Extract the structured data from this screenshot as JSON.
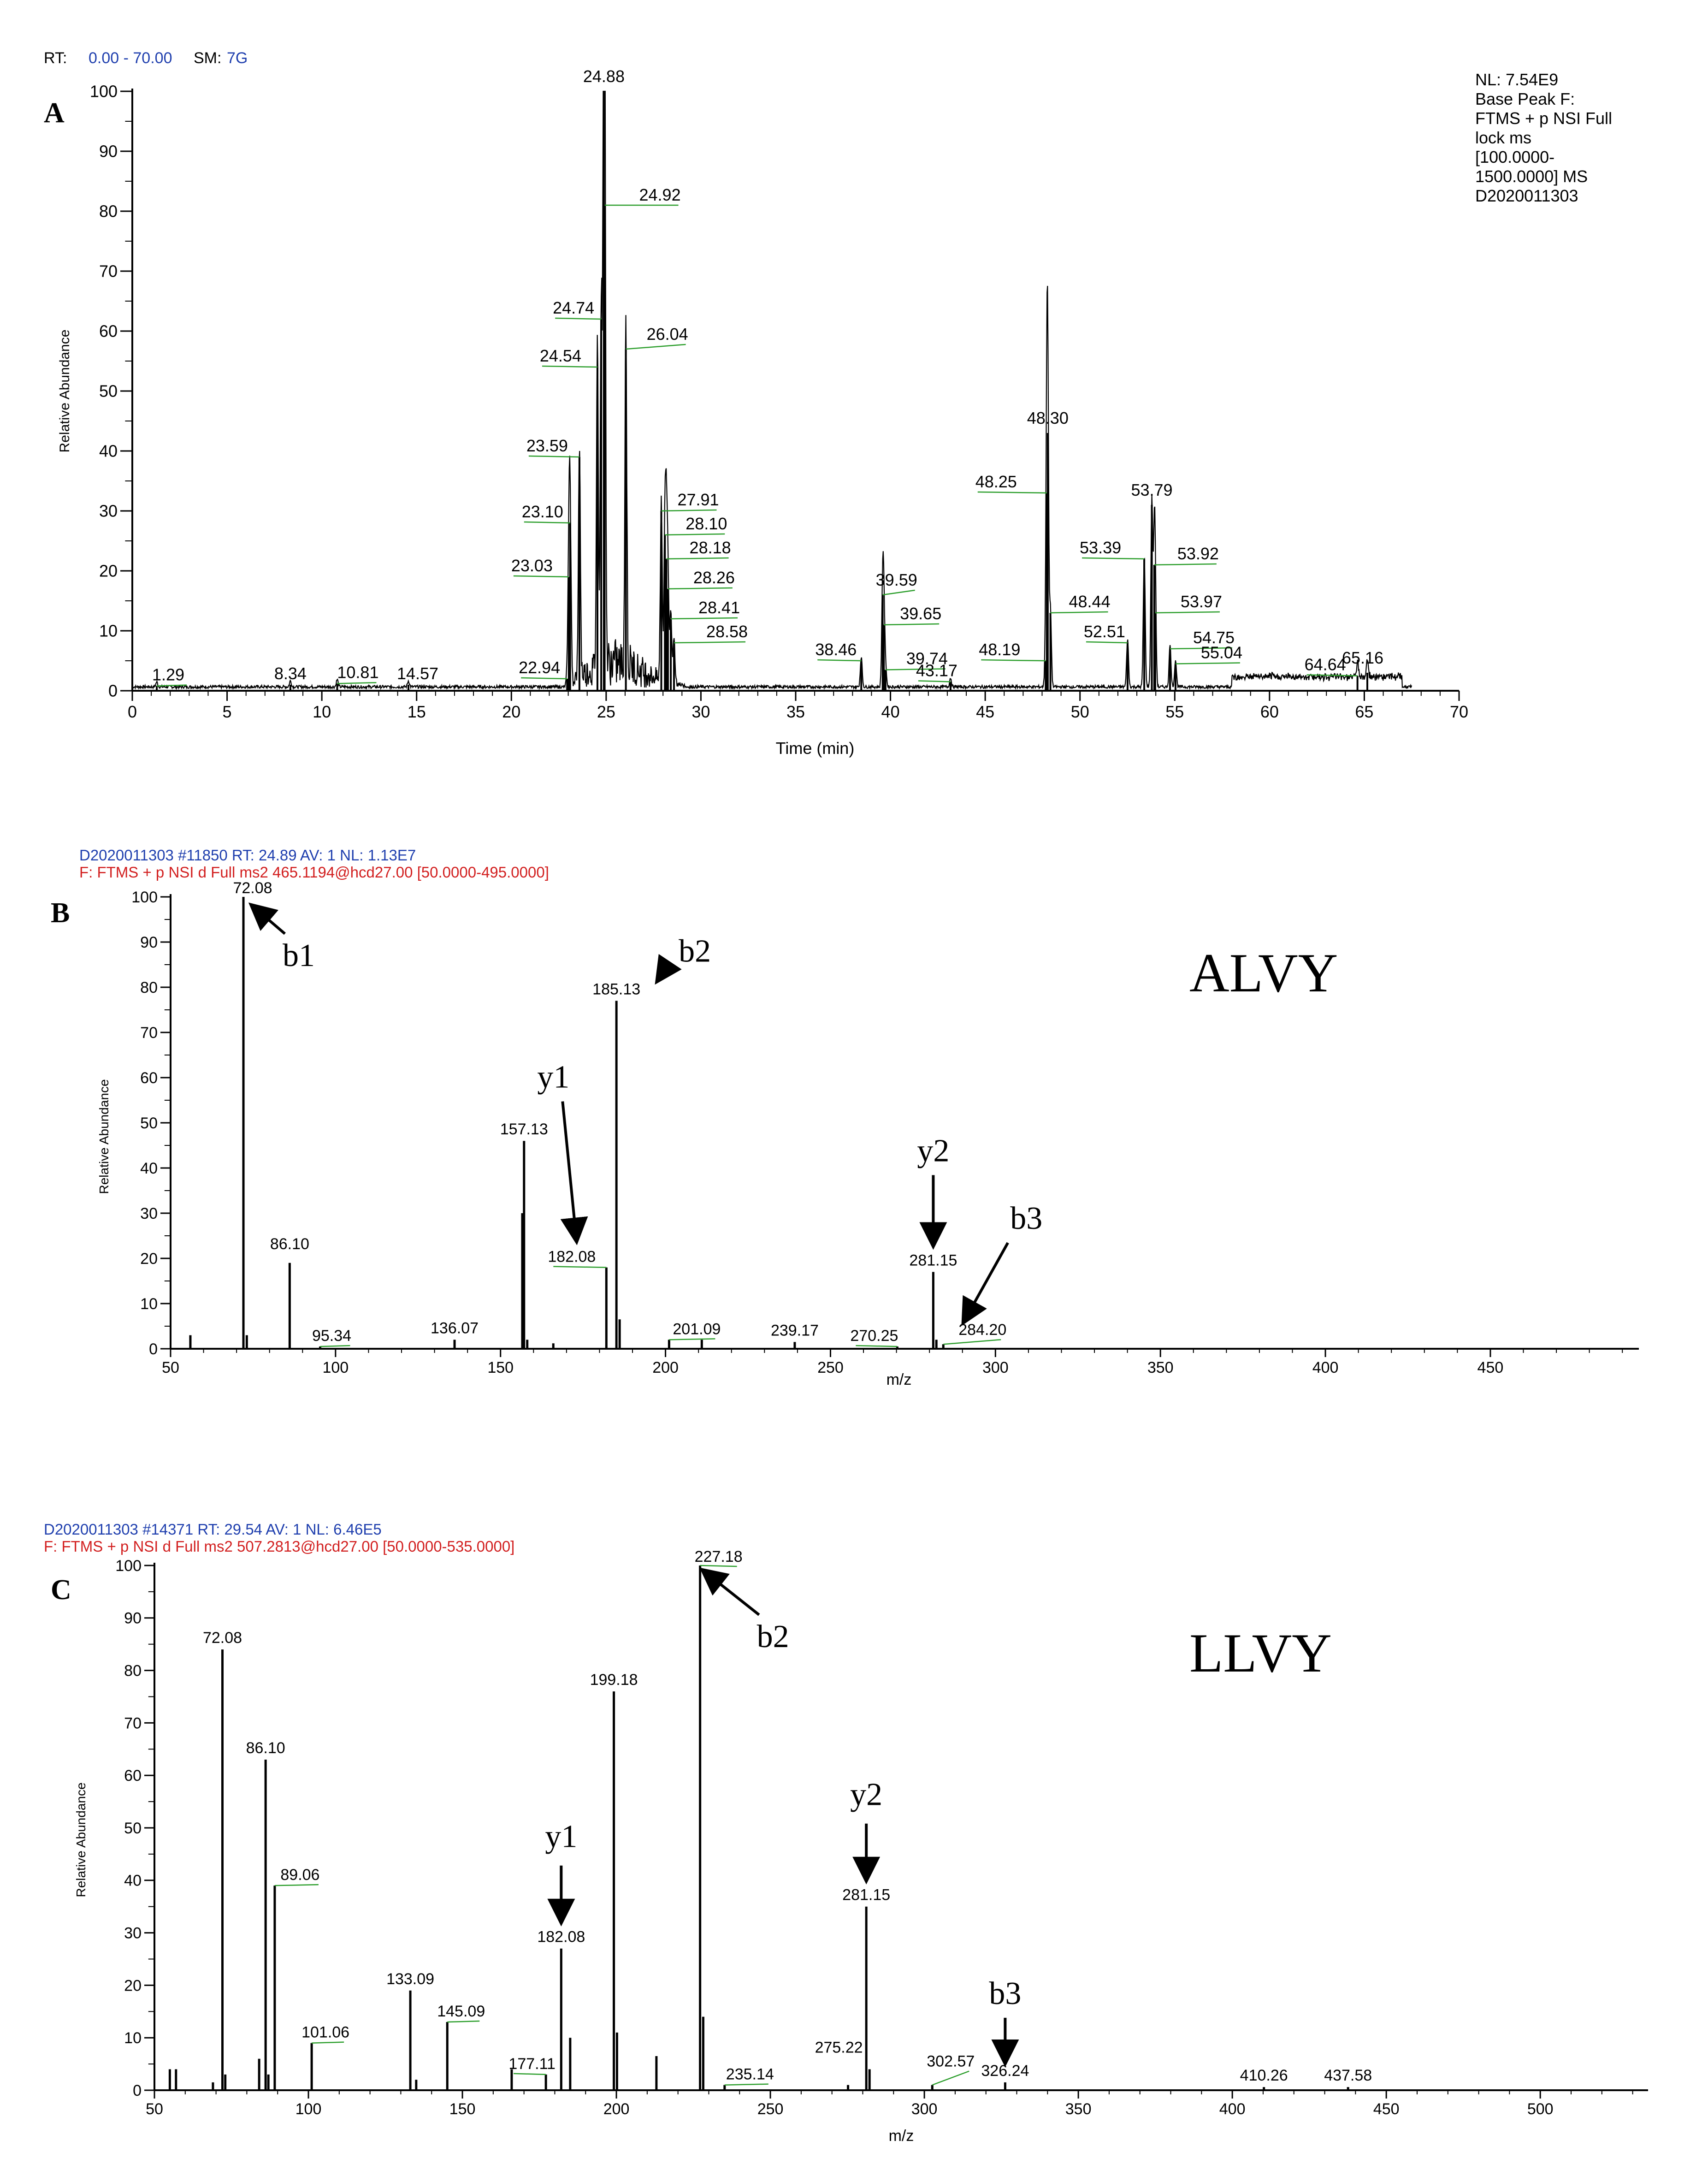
{
  "colors": {
    "axis": "#000000",
    "peak": "#000000",
    "leader": "#2a9d2a",
    "header_blue": "#1f3fae",
    "header_red": "#d21f1f",
    "arrow": "#000000"
  },
  "chart_data": [
    {
      "panel": "A",
      "type": "line",
      "header": {
        "rt_label": "RT:",
        "rt_value": "0.00 - 70.00",
        "sm_label": "SM:",
        "sm_value": "7G"
      },
      "info_box": [
        "NL: 7.54E9",
        "Base Peak F:",
        "FTMS + p NSI Full",
        "lock ms",
        "[100.0000-",
        "1500.0000] MS",
        "D2020011303"
      ],
      "xlabel": "Time (min)",
      "ylabel": "Relative Abundance",
      "xlim": [
        0,
        70
      ],
      "ylim": [
        0,
        100
      ],
      "xticks": [
        0,
        5,
        10,
        15,
        20,
        25,
        30,
        35,
        40,
        45,
        50,
        55,
        60,
        65,
        70
      ],
      "yticks": [
        0,
        10,
        20,
        30,
        40,
        50,
        60,
        70,
        80,
        90,
        100
      ],
      "peaks": [
        {
          "x": 1.29,
          "y": 0.8,
          "label": "1.29"
        },
        {
          "x": 8.34,
          "y": 1.0,
          "label": "8.34"
        },
        {
          "x": 10.81,
          "y": 1.2,
          "label": "10.81"
        },
        {
          "x": 14.57,
          "y": 1.0,
          "label": "14.57"
        },
        {
          "x": 22.94,
          "y": 2.0,
          "label": "22.94"
        },
        {
          "x": 23.03,
          "y": 19,
          "label": "23.03"
        },
        {
          "x": 23.1,
          "y": 28,
          "label": "23.10"
        },
        {
          "x": 23.59,
          "y": 39,
          "label": "23.59"
        },
        {
          "x": 24.54,
          "y": 54,
          "label": "24.54"
        },
        {
          "x": 24.74,
          "y": 62,
          "label": "24.74"
        },
        {
          "x": 24.88,
          "y": 100,
          "label": "24.88"
        },
        {
          "x": 24.92,
          "y": 81,
          "label": "24.92"
        },
        {
          "x": 26.04,
          "y": 57,
          "label": "26.04"
        },
        {
          "x": 27.91,
          "y": 30,
          "label": "27.91"
        },
        {
          "x": 28.1,
          "y": 26,
          "label": "28.10"
        },
        {
          "x": 28.18,
          "y": 22,
          "label": "28.18"
        },
        {
          "x": 28.26,
          "y": 17,
          "label": "28.26"
        },
        {
          "x": 28.41,
          "y": 12,
          "label": "28.41"
        },
        {
          "x": 28.58,
          "y": 8,
          "label": "28.58"
        },
        {
          "x": 38.46,
          "y": 5,
          "label": "38.46"
        },
        {
          "x": 39.59,
          "y": 16,
          "label": "39.59"
        },
        {
          "x": 39.65,
          "y": 11,
          "label": "39.65"
        },
        {
          "x": 39.74,
          "y": 3.5,
          "label": "39.74"
        },
        {
          "x": 43.17,
          "y": 1.5,
          "label": "43.17"
        },
        {
          "x": 48.19,
          "y": 5,
          "label": "48.19"
        },
        {
          "x": 48.25,
          "y": 33,
          "label": "48.25"
        },
        {
          "x": 48.3,
          "y": 43,
          "label": "48.30"
        },
        {
          "x": 48.44,
          "y": 13,
          "label": "48.44"
        },
        {
          "x": 52.51,
          "y": 8,
          "label": "52.51"
        },
        {
          "x": 53.39,
          "y": 22,
          "label": "53.39"
        },
        {
          "x": 53.79,
          "y": 31,
          "label": "53.79"
        },
        {
          "x": 53.92,
          "y": 21,
          "label": "53.92"
        },
        {
          "x": 53.97,
          "y": 13,
          "label": "53.97"
        },
        {
          "x": 54.75,
          "y": 7,
          "label": "54.75"
        },
        {
          "x": 55.04,
          "y": 4.5,
          "label": "55.04"
        },
        {
          "x": 64.64,
          "y": 2.5,
          "label": "64.64"
        },
        {
          "x": 65.16,
          "y": 3,
          "label": "65.16"
        }
      ]
    },
    {
      "panel": "B",
      "type": "bar",
      "header": {
        "line1": "D2020011303 #11850  RT: 24.89  AV: 1  NL: 1.13E7",
        "line2": "F: FTMS + p NSI d Full ms2 465.1194@hcd27.00 [50.0000-495.0000]"
      },
      "peptide": "ALVY",
      "xlabel": "m/z",
      "ylabel": "Relative Abundance",
      "xlim": [
        50,
        495
      ],
      "ylim": [
        0,
        100
      ],
      "xticks": [
        50,
        100,
        150,
        200,
        250,
        300,
        350,
        400,
        450
      ],
      "yticks": [
        0,
        10,
        20,
        30,
        40,
        50,
        60,
        70,
        80,
        90,
        100
      ],
      "peaks": [
        {
          "x": 56.0,
          "y": 3
        },
        {
          "x": 72.08,
          "y": 100,
          "label": "72.08"
        },
        {
          "x": 73.1,
          "y": 3
        },
        {
          "x": 86.1,
          "y": 19,
          "label": "86.10"
        },
        {
          "x": 95.34,
          "y": 0.5,
          "label": "95.34"
        },
        {
          "x": 136.07,
          "y": 2,
          "label": "136.07"
        },
        {
          "x": 156.6,
          "y": 30
        },
        {
          "x": 157.13,
          "y": 46,
          "label": "157.13"
        },
        {
          "x": 158.1,
          "y": 2
        },
        {
          "x": 166.0,
          "y": 1.2
        },
        {
          "x": 182.08,
          "y": 18,
          "label": "182.08"
        },
        {
          "x": 185.13,
          "y": 77,
          "label": "185.13"
        },
        {
          "x": 186.1,
          "y": 6.5
        },
        {
          "x": 201.09,
          "y": 2,
          "label": "201.09"
        },
        {
          "x": 211.0,
          "y": 2
        },
        {
          "x": 239.17,
          "y": 1.5,
          "label": "239.17"
        },
        {
          "x": 270.25,
          "y": 0.5,
          "label": "270.25"
        },
        {
          "x": 281.15,
          "y": 17,
          "label": "281.15"
        },
        {
          "x": 282.1,
          "y": 2
        },
        {
          "x": 284.2,
          "y": 1,
          "label": "284.20"
        }
      ],
      "annotations": [
        {
          "text": "b1",
          "target": 72.08
        },
        {
          "text": "b2",
          "target": 185.13
        },
        {
          "text": "y1",
          "target": 182.08
        },
        {
          "text": "y2",
          "target": 281.15
        },
        {
          "text": "b3",
          "target": 284.2
        }
      ]
    },
    {
      "panel": "C",
      "type": "bar",
      "header": {
        "line1": "D2020011303 #14371  RT: 29.54  AV: 1  NL: 6.46E5",
        "line2": "F: FTMS + p NSI d Full ms2 507.2813@hcd27.00 [50.0000-535.0000]"
      },
      "peptide": "LLVY",
      "xlabel": "m/z",
      "ylabel": "Relative Abundance",
      "xlim": [
        50,
        535
      ],
      "ylim": [
        0,
        100
      ],
      "xticks": [
        50,
        100,
        150,
        200,
        250,
        300,
        350,
        400,
        450,
        500
      ],
      "yticks": [
        0,
        10,
        20,
        30,
        40,
        50,
        60,
        70,
        80,
        90,
        100
      ],
      "peaks": [
        {
          "x": 55.0,
          "y": 4
        },
        {
          "x": 57.0,
          "y": 4
        },
        {
          "x": 69.0,
          "y": 1.5
        },
        {
          "x": 72.08,
          "y": 84,
          "label": "72.08"
        },
        {
          "x": 73.0,
          "y": 3
        },
        {
          "x": 84.0,
          "y": 6
        },
        {
          "x": 86.1,
          "y": 63,
          "label": "86.10"
        },
        {
          "x": 87.0,
          "y": 3
        },
        {
          "x": 89.06,
          "y": 39,
          "label": "89.06"
        },
        {
          "x": 101.06,
          "y": 9,
          "label": "101.06"
        },
        {
          "x": 133.09,
          "y": 19,
          "label": "133.09"
        },
        {
          "x": 135.0,
          "y": 2
        },
        {
          "x": 145.09,
          "y": 13,
          "label": "145.09"
        },
        {
          "x": 166.0,
          "y": 4
        },
        {
          "x": 177.11,
          "y": 3,
          "label": "177.11"
        },
        {
          "x": 182.08,
          "y": 27,
          "label": "182.08"
        },
        {
          "x": 185.0,
          "y": 10
        },
        {
          "x": 199.18,
          "y": 76,
          "label": "199.18"
        },
        {
          "x": 200.2,
          "y": 11
        },
        {
          "x": 213.0,
          "y": 6.5
        },
        {
          "x": 227.18,
          "y": 100,
          "label": "227.18"
        },
        {
          "x": 228.2,
          "y": 14
        },
        {
          "x": 235.14,
          "y": 1,
          "label": "235.14"
        },
        {
          "x": 275.22,
          "y": 1,
          "label": "275.22"
        },
        {
          "x": 281.15,
          "y": 35,
          "label": "281.15"
        },
        {
          "x": 282.2,
          "y": 4
        },
        {
          "x": 302.57,
          "y": 1,
          "label": "302.57"
        },
        {
          "x": 326.24,
          "y": 1.5,
          "label": "326.24"
        },
        {
          "x": 410.26,
          "y": 0.6,
          "label": "410.26"
        },
        {
          "x": 437.58,
          "y": 0.6,
          "label": "437.58"
        }
      ],
      "annotations": [
        {
          "text": "b2",
          "target": 227.18
        },
        {
          "text": "y1",
          "target": 182.08
        },
        {
          "text": "y2",
          "target": 281.15
        },
        {
          "text": "b3",
          "target": 326.24
        }
      ]
    }
  ]
}
